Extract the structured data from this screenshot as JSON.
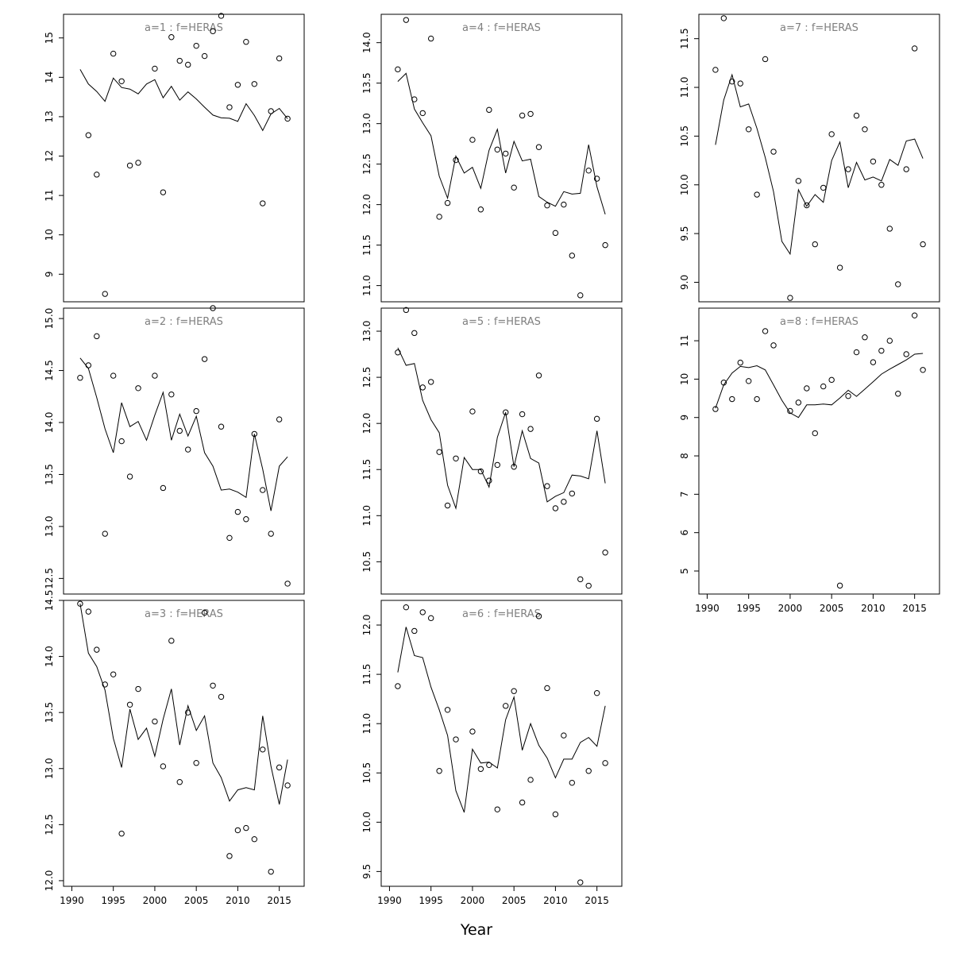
{
  "chart_data": {
    "type": "line",
    "layout": "multi-panel grid of 3 rows by 3 columns; panel a=1..3 in left column, a=4..6 in middle column, a=7..8 in right column",
    "xlabel": "Year",
    "point_style": "open circles = observed values",
    "line_style": "solid black line = fitted values",
    "x_ticks": [
      1990,
      1995,
      2000,
      2005,
      2010,
      2015
    ],
    "years": [
      1991,
      1992,
      1993,
      1994,
      1995,
      1996,
      1997,
      1998,
      1999,
      2000,
      2001,
      2002,
      2003,
      2004,
      2005,
      2006,
      2007,
      2008,
      2009,
      2010,
      2011,
      2012,
      2013,
      2014,
      2015,
      2016
    ],
    "panels": [
      {
        "label": "a=1 : f=HERAS",
        "yticks": [
          9,
          10,
          11,
          12,
          13,
          14,
          15
        ],
        "ylim": [
          8.3,
          15.6
        ],
        "points": [
          [
            1992,
            12.53
          ],
          [
            1993,
            11.53
          ],
          [
            1994,
            8.5
          ],
          [
            1995,
            14.6
          ],
          [
            1996,
            13.9
          ],
          [
            1997,
            11.76
          ],
          [
            1998,
            11.83
          ],
          [
            2000,
            14.22
          ],
          [
            2001,
            11.08
          ],
          [
            2002,
            15.02
          ],
          [
            2003,
            14.42
          ],
          [
            2004,
            14.32
          ],
          [
            2005,
            14.8
          ],
          [
            2006,
            14.54
          ],
          [
            2007,
            15.17
          ],
          [
            2008,
            15.56
          ],
          [
            2009,
            13.24
          ],
          [
            2010,
            13.81
          ],
          [
            2011,
            14.9
          ],
          [
            2012,
            13.83
          ],
          [
            2013,
            10.8
          ],
          [
            2014,
            13.14
          ],
          [
            2015,
            14.48
          ],
          [
            2016,
            12.95
          ]
        ],
        "fit": [
          14.2,
          13.83,
          13.64,
          13.39,
          13.98,
          13.74,
          13.7,
          13.58,
          13.83,
          13.94,
          13.48,
          13.77,
          13.42,
          13.63,
          13.45,
          13.24,
          13.04,
          12.97,
          12.96,
          12.88,
          13.33,
          13.03,
          12.65,
          13.07,
          13.21,
          12.95
        ]
      },
      {
        "label": "a=2 : f=HERAS",
        "yticks": [
          12.5,
          13.0,
          13.5,
          14.0,
          14.5,
          15.0
        ],
        "ylim": [
          12.35,
          15.1
        ],
        "points": [
          [
            1991,
            14.43
          ],
          [
            1992,
            14.55
          ],
          [
            1993,
            14.83
          ],
          [
            1994,
            12.93
          ],
          [
            1995,
            14.45
          ],
          [
            1996,
            13.82
          ],
          [
            1997,
            13.48
          ],
          [
            1998,
            14.33
          ],
          [
            2000,
            14.45
          ],
          [
            2001,
            13.37
          ],
          [
            2002,
            14.27
          ],
          [
            2003,
            13.92
          ],
          [
            2004,
            13.74
          ],
          [
            2005,
            14.11
          ],
          [
            2006,
            14.61
          ],
          [
            2007,
            15.1
          ],
          [
            2008,
            13.96
          ],
          [
            2009,
            12.89
          ],
          [
            2010,
            13.14
          ],
          [
            2011,
            13.07
          ],
          [
            2012,
            13.89
          ],
          [
            2013,
            13.35
          ],
          [
            2014,
            12.93
          ],
          [
            2015,
            14.03
          ],
          [
            2016,
            12.45
          ]
        ],
        "fit": [
          14.62,
          14.52,
          14.24,
          13.94,
          13.71,
          14.19,
          13.96,
          14.01,
          13.83,
          14.07,
          14.29,
          13.83,
          14.08,
          13.87,
          14.06,
          13.71,
          13.58,
          13.35,
          13.36,
          13.33,
          13.28,
          13.89,
          13.55,
          13.15,
          13.58,
          13.67
        ]
      },
      {
        "label": "a=3 : f=HERAS",
        "yticks": [
          12.0,
          12.5,
          13.0,
          13.5,
          14.0,
          14.5
        ],
        "ylim": [
          11.95,
          14.5
        ],
        "points": [
          [
            1991,
            14.47
          ],
          [
            1992,
            14.4
          ],
          [
            1993,
            14.06
          ],
          [
            1994,
            13.75
          ],
          [
            1995,
            13.84
          ],
          [
            1996,
            12.42
          ],
          [
            1997,
            13.57
          ],
          [
            1998,
            13.71
          ],
          [
            2000,
            13.42
          ],
          [
            2001,
            13.02
          ],
          [
            2002,
            14.14
          ],
          [
            2003,
            12.88
          ],
          [
            2004,
            13.5
          ],
          [
            2005,
            13.05
          ],
          [
            2006,
            14.39
          ],
          [
            2007,
            13.74
          ],
          [
            2008,
            13.64
          ],
          [
            2009,
            12.22
          ],
          [
            2010,
            12.45
          ],
          [
            2011,
            12.47
          ],
          [
            2012,
            12.37
          ],
          [
            2013,
            13.17
          ],
          [
            2014,
            12.08
          ],
          [
            2015,
            13.01
          ],
          [
            2016,
            12.85
          ]
        ],
        "fit": [
          14.47,
          14.03,
          13.91,
          13.7,
          13.27,
          13.01,
          13.53,
          13.26,
          13.36,
          13.11,
          13.44,
          13.71,
          13.21,
          13.56,
          13.34,
          13.47,
          13.05,
          12.92,
          12.71,
          12.81,
          12.83,
          12.81,
          13.47,
          13.02,
          12.68,
          13.08
        ]
      },
      {
        "label": "a=4 : f=HERAS",
        "yticks": [
          11.0,
          11.5,
          12.0,
          12.5,
          13.0,
          13.5,
          14.0
        ],
        "ylim": [
          10.8,
          14.35
        ],
        "points": [
          [
            1991,
            13.67
          ],
          [
            1992,
            14.28
          ],
          [
            1993,
            13.3
          ],
          [
            1994,
            13.13
          ],
          [
            1995,
            14.05
          ],
          [
            1996,
            11.85
          ],
          [
            1997,
            12.02
          ],
          [
            1998,
            12.55
          ],
          [
            2000,
            12.8
          ],
          [
            2001,
            11.94
          ],
          [
            2002,
            13.17
          ],
          [
            2003,
            12.68
          ],
          [
            2004,
            12.63
          ],
          [
            2005,
            12.21
          ],
          [
            2006,
            13.1
          ],
          [
            2007,
            13.12
          ],
          [
            2008,
            12.71
          ],
          [
            2009,
            11.99
          ],
          [
            2010,
            11.65
          ],
          [
            2011,
            12.0
          ],
          [
            2012,
            11.37
          ],
          [
            2013,
            10.88
          ],
          [
            2014,
            12.42
          ],
          [
            2015,
            12.32
          ],
          [
            2016,
            11.5
          ]
        ],
        "fit": [
          13.52,
          13.62,
          13.18,
          13.01,
          12.85,
          12.35,
          12.08,
          12.6,
          12.39,
          12.46,
          12.2,
          12.67,
          12.93,
          12.39,
          12.78,
          12.54,
          12.56,
          12.1,
          12.03,
          11.98,
          12.16,
          12.13,
          12.14,
          12.74,
          12.22,
          11.88
        ]
      },
      {
        "label": "a=5 : f=HERAS",
        "yticks": [
          10.5,
          11.0,
          11.5,
          12.0,
          12.5,
          13.0
        ],
        "ylim": [
          10.15,
          13.25
        ],
        "points": [
          [
            1991,
            12.77
          ],
          [
            1992,
            13.23
          ],
          [
            1993,
            12.98
          ],
          [
            1994,
            12.39
          ],
          [
            1995,
            12.45
          ],
          [
            1996,
            11.69
          ],
          [
            1997,
            11.11
          ],
          [
            1998,
            11.62
          ],
          [
            2000,
            12.13
          ],
          [
            2001,
            11.48
          ],
          [
            2002,
            11.38
          ],
          [
            2003,
            11.55
          ],
          [
            2004,
            12.12
          ],
          [
            2005,
            11.53
          ],
          [
            2006,
            12.1
          ],
          [
            2007,
            11.94
          ],
          [
            2008,
            12.52
          ],
          [
            2009,
            11.32
          ],
          [
            2010,
            11.08
          ],
          [
            2011,
            11.15
          ],
          [
            2012,
            11.24
          ],
          [
            2013,
            10.31
          ],
          [
            2014,
            10.24
          ],
          [
            2015,
            12.05
          ],
          [
            2016,
            10.6
          ]
        ],
        "fit": [
          12.82,
          12.63,
          12.65,
          12.25,
          12.04,
          11.9,
          11.33,
          11.08,
          11.63,
          11.5,
          11.5,
          11.31,
          11.85,
          12.12,
          11.53,
          11.92,
          11.62,
          11.57,
          11.15,
          11.21,
          11.25,
          11.44,
          11.43,
          11.4,
          11.92,
          11.35
        ]
      },
      {
        "label": "a=6 : f=HERAS",
        "yticks": [
          9.5,
          10.0,
          10.5,
          11.0,
          11.5,
          12.0
        ],
        "ylim": [
          9.35,
          12.25
        ],
        "points": [
          [
            1991,
            11.38
          ],
          [
            1992,
            12.18
          ],
          [
            1993,
            11.94
          ],
          [
            1994,
            12.13
          ],
          [
            1995,
            12.07
          ],
          [
            1996,
            10.52
          ],
          [
            1997,
            11.14
          ],
          [
            1998,
            10.84
          ],
          [
            2000,
            10.92
          ],
          [
            2001,
            10.54
          ],
          [
            2002,
            10.58
          ],
          [
            2003,
            10.13
          ],
          [
            2004,
            11.18
          ],
          [
            2005,
            11.33
          ],
          [
            2006,
            10.2
          ],
          [
            2007,
            10.43
          ],
          [
            2008,
            12.09
          ],
          [
            2009,
            11.36
          ],
          [
            2010,
            10.08
          ],
          [
            2011,
            10.88
          ],
          [
            2012,
            10.4
          ],
          [
            2013,
            9.39
          ],
          [
            2014,
            10.52
          ],
          [
            2015,
            11.31
          ],
          [
            2016,
            10.6
          ]
        ],
        "fit": [
          11.52,
          11.98,
          11.69,
          11.67,
          11.37,
          11.14,
          10.88,
          10.32,
          10.1,
          10.74,
          10.6,
          10.61,
          10.55,
          11.04,
          11.27,
          10.73,
          11.0,
          10.78,
          10.65,
          10.45,
          10.64,
          10.64,
          10.81,
          10.86,
          10.77,
          11.18
        ]
      },
      {
        "label": "a=7 : f=HERAS",
        "yticks": [
          9.0,
          9.5,
          10.0,
          10.5,
          11.0,
          11.5
        ],
        "ylim": [
          8.8,
          11.75
        ],
        "points": [
          [
            1991,
            11.18
          ],
          [
            1992,
            11.71
          ],
          [
            1993,
            11.06
          ],
          [
            1994,
            11.04
          ],
          [
            1995,
            10.57
          ],
          [
            1996,
            9.9
          ],
          [
            1997,
            11.29
          ],
          [
            1998,
            10.34
          ],
          [
            2000,
            8.84
          ],
          [
            2001,
            10.04
          ],
          [
            2002,
            9.79
          ],
          [
            2003,
            9.39
          ],
          [
            2004,
            9.97
          ],
          [
            2005,
            10.52
          ],
          [
            2006,
            9.15
          ],
          [
            2007,
            10.16
          ],
          [
            2008,
            10.71
          ],
          [
            2009,
            10.57
          ],
          [
            2010,
            10.24
          ],
          [
            2011,
            10.0
          ],
          [
            2012,
            9.55
          ],
          [
            2013,
            8.98
          ],
          [
            2014,
            10.16
          ],
          [
            2015,
            11.4
          ],
          [
            2016,
            9.39
          ]
        ],
        "fit": [
          10.41,
          10.87,
          11.13,
          10.8,
          10.83,
          10.58,
          10.28,
          9.93,
          9.42,
          9.29,
          9.95,
          9.78,
          9.9,
          9.82,
          10.25,
          10.44,
          9.97,
          10.23,
          10.05,
          10.08,
          10.04,
          10.26,
          10.2,
          10.45,
          10.47,
          10.27
        ]
      },
      {
        "label": "a=8 : f=HERAS",
        "yticks": [
          5,
          6,
          7,
          8,
          9,
          10,
          11
        ],
        "ylim": [
          4.4,
          11.85
        ],
        "points": [
          [
            1991,
            9.22
          ],
          [
            1992,
            9.91
          ],
          [
            1993,
            9.48
          ],
          [
            1994,
            10.43
          ],
          [
            1995,
            9.95
          ],
          [
            1996,
            9.48
          ],
          [
            1997,
            11.25
          ],
          [
            1998,
            10.88
          ],
          [
            2000,
            9.17
          ],
          [
            2001,
            9.39
          ],
          [
            2002,
            9.76
          ],
          [
            2003,
            8.59
          ],
          [
            2004,
            9.81
          ],
          [
            2005,
            9.98
          ],
          [
            2006,
            4.62
          ],
          [
            2007,
            9.56
          ],
          [
            2008,
            10.7
          ],
          [
            2009,
            11.09
          ],
          [
            2010,
            10.44
          ],
          [
            2011,
            10.74
          ],
          [
            2012,
            11.0
          ],
          [
            2013,
            9.62
          ],
          [
            2014,
            10.65
          ],
          [
            2015,
            11.66
          ],
          [
            2016,
            10.24
          ]
        ],
        "fit": [
          9.24,
          9.85,
          10.16,
          10.33,
          10.3,
          10.35,
          10.24,
          9.85,
          9.45,
          9.12,
          9.0,
          9.33,
          9.33,
          9.35,
          9.33,
          9.51,
          9.71,
          9.55,
          9.74,
          9.93,
          10.13,
          10.26,
          10.38,
          10.5,
          10.65,
          10.67
        ]
      }
    ]
  }
}
